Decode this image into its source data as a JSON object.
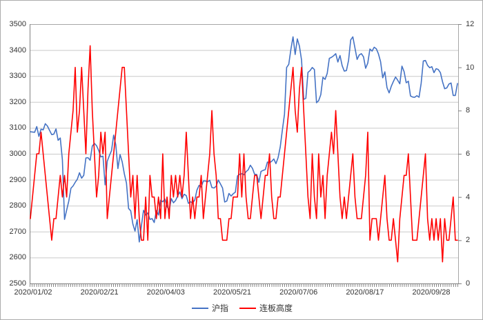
{
  "chart_data": {
    "type": "line",
    "title": "",
    "grid": true,
    "legend_position": "bottom",
    "x_tick_labels": [
      "2020/01/02",
      "2020/02/21",
      "2020/04/03",
      "2020/05/21",
      "2020/07/06",
      "2020/08/17",
      "2020/09/28"
    ],
    "left_axis": {
      "min": 2500,
      "max": 3500,
      "step": 100,
      "ticks": [
        3500,
        3400,
        3300,
        3200,
        3100,
        3000,
        2900,
        2800,
        2700,
        2600,
        2500
      ]
    },
    "right_axis": {
      "min": 0,
      "max": 12,
      "step": 2,
      "ticks": [
        12,
        10,
        8,
        6,
        4,
        2,
        0
      ]
    },
    "series": [
      {
        "name": "沪指",
        "yaxis": "left",
        "color": "#4472C4",
        "values": [
          3085,
          3084,
          3083,
          3105,
          3067,
          3095,
          3092,
          3116,
          3107,
          3090,
          3074,
          3076,
          3096,
          3052,
          3061,
          2977,
          2747,
          2783,
          2818,
          2867,
          2876,
          2890,
          2902,
          2927,
          2906,
          2917,
          2984,
          2985,
          2975,
          3030,
          3040,
          3031,
          3013,
          2988,
          2991,
          2880,
          2971,
          2993,
          3012,
          3072,
          3035,
          2943,
          2997,
          2969,
          2923,
          2887,
          2789,
          2780,
          2729,
          2702,
          2746,
          2660,
          2722,
          2782,
          2764,
          2772,
          2747,
          2750,
          2735,
          2781,
          2764,
          2821,
          2815,
          2826,
          2797,
          2783,
          2827,
          2811,
          2820,
          2838,
          2853,
          2827,
          2844,
          2839,
          2809,
          2815,
          2810,
          2822,
          2860,
          2878,
          2872,
          2895,
          2895,
          2892,
          2898,
          2870,
          2868,
          2875,
          2899,
          2884,
          2868,
          2814,
          2818,
          2847,
          2837,
          2846,
          2852,
          2915,
          2921,
          2923,
          2919,
          2931,
          2938,
          2956,
          2944,
          2921,
          2920,
          2890,
          2932,
          2936,
          2939,
          2968,
          2965,
          2971,
          2980,
          2962,
          2985,
          3026,
          3091,
          3153,
          3333,
          3345,
          3403,
          3451,
          3383,
          3443,
          3415,
          3361,
          3210,
          3214,
          3314,
          3321,
          3333,
          3325,
          3197,
          3205,
          3228,
          3295,
          3287,
          3310,
          3368,
          3372,
          3378,
          3386,
          3354,
          3379,
          3340,
          3319,
          3321,
          3360,
          3439,
          3451,
          3408,
          3364,
          3381,
          3386,
          3374,
          3330,
          3350,
          3404,
          3396,
          3411,
          3405,
          3385,
          3355,
          3293,
          3316,
          3255,
          3235,
          3260,
          3279,
          3296,
          3284,
          3270,
          3338,
          3317,
          3274,
          3280,
          3223,
          3219,
          3218,
          3224,
          3218,
          3272,
          3358,
          3360,
          3341,
          3332,
          3336,
          3313,
          3328,
          3325,
          3313,
          3278,
          3251,
          3254,
          3269,
          3273,
          3225,
          3225,
          3271
        ]
      },
      {
        "name": "连板高度",
        "yaxis": "right",
        "color": "#FF0000",
        "values": [
          3,
          4,
          5,
          6,
          6,
          7,
          6,
          5,
          4,
          3,
          2,
          3,
          3,
          4,
          5,
          4,
          5,
          4,
          6,
          7,
          8,
          10,
          7,
          8,
          10,
          8,
          6,
          9,
          11,
          8,
          6,
          4,
          5,
          7,
          6,
          7,
          3,
          4,
          5,
          6,
          7,
          8,
          9,
          10,
          10,
          8,
          6,
          4,
          5,
          3,
          5,
          3,
          2,
          2,
          4,
          2,
          5,
          4,
          4,
          3,
          4,
          3,
          6,
          3,
          4,
          3,
          5,
          4,
          5,
          4,
          5,
          4,
          5,
          7,
          5,
          3,
          4,
          3,
          4,
          4,
          5,
          3,
          4,
          5,
          6,
          8,
          6,
          5,
          3,
          3,
          2,
          2,
          2,
          3,
          3,
          4,
          4,
          4,
          6,
          4,
          6,
          4,
          3,
          3,
          4,
          5,
          5,
          4,
          3,
          4,
          5,
          5,
          6,
          4,
          3,
          3,
          4,
          4,
          5,
          6,
          7,
          8,
          9,
          10,
          8,
          7,
          9,
          10,
          8,
          6,
          4,
          3,
          6,
          4,
          3,
          6,
          4,
          5,
          3,
          5,
          6,
          7,
          6,
          8,
          6,
          4,
          3,
          4,
          3,
          4,
          5,
          6,
          4,
          3,
          3,
          3,
          4,
          5,
          7,
          2,
          3,
          3,
          3,
          2,
          3,
          4,
          5,
          3,
          2,
          2,
          3,
          2,
          1,
          3,
          4,
          5,
          5,
          6,
          4,
          2,
          2,
          2,
          3,
          4,
          5,
          6,
          3,
          2,
          3,
          2,
          3,
          2,
          3,
          1,
          3,
          2,
          2,
          3,
          4,
          2,
          2
        ]
      }
    ]
  },
  "style": {
    "gridline_color": "#C9C9C9",
    "border_color": "#A6A6A6",
    "axis_color": "#808080",
    "text_color": "#333333"
  }
}
